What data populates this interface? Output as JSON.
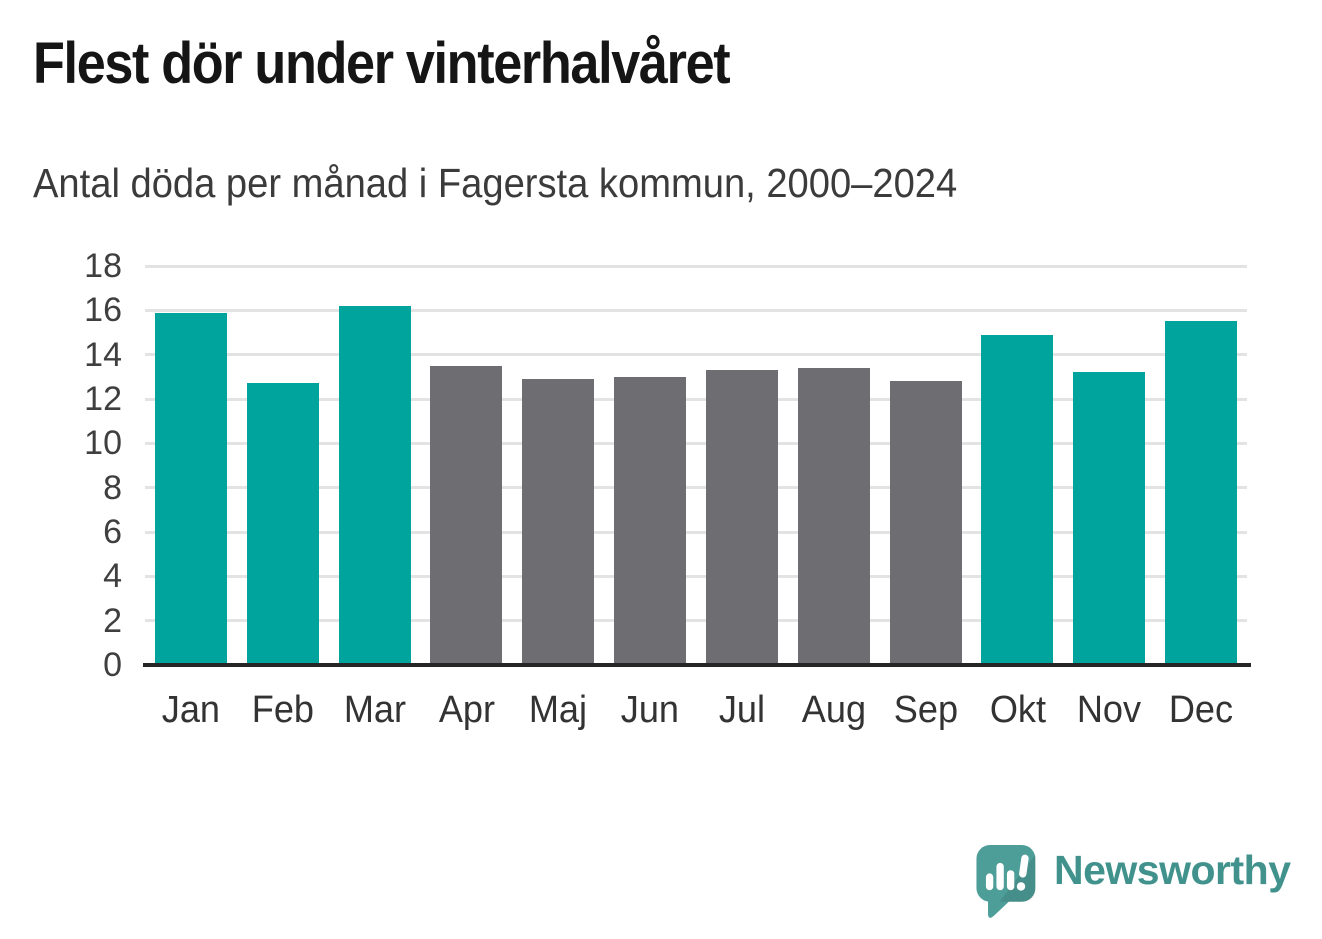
{
  "title": "Flest dör under vinterhalvåret",
  "subtitle": "Antal döda per månad i Fagersta kommun, 2000–2024",
  "branding": {
    "name": "Newsworthy",
    "logo_icon": "newsworthy-speech-bubble-bar-chart-icon",
    "text_color": "#41928c",
    "bubble_color": "#4d9d98"
  },
  "colors": {
    "winter_bar": "#00a49c",
    "summer_bar": "#6d6d72",
    "gridline": "#e3e3e3",
    "axis_line": "#262626",
    "title_text": "#151515",
    "subtitle_text": "#3b3b3b",
    "tick_text": "#3f3f3f"
  },
  "chart_data": {
    "type": "bar",
    "title": "Flest dör under vinterhalvåret",
    "subtitle": "Antal döda per månad i Fagersta kommun, 2000–2024",
    "categories": [
      "Jan",
      "Feb",
      "Mar",
      "Apr",
      "Maj",
      "Jun",
      "Jul",
      "Aug",
      "Sep",
      "Okt",
      "Nov",
      "Dec"
    ],
    "values": [
      15.9,
      12.7,
      16.2,
      13.5,
      12.9,
      13.0,
      13.3,
      13.4,
      12.8,
      14.9,
      13.2,
      15.5
    ],
    "bar_colors": [
      "#00a49c",
      "#00a49c",
      "#00a49c",
      "#6d6d72",
      "#6d6d72",
      "#6d6d72",
      "#6d6d72",
      "#6d6d72",
      "#6d6d72",
      "#00a49c",
      "#00a49c",
      "#00a49c"
    ],
    "xlabel": "",
    "ylabel": "",
    "ylim": [
      0,
      18
    ],
    "yticks": [
      0,
      2,
      4,
      6,
      8,
      10,
      12,
      14,
      16,
      18
    ],
    "grid": "horizontal",
    "legend": "none"
  }
}
